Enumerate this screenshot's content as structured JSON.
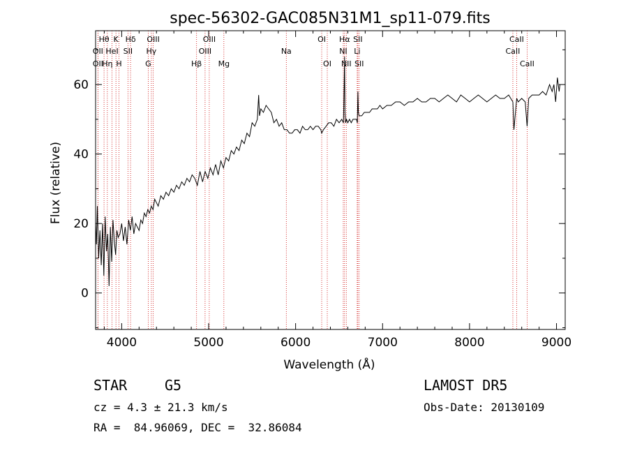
{
  "chart_data": {
    "type": "line",
    "title": "spec-56302-GAC085N31M1_sp11-079.fits",
    "xlabel": "Wavelength (Å)",
    "ylabel": "Flux (relative)",
    "xlim": [
      3700,
      9100
    ],
    "ylim": [
      -10.5,
      75.5
    ],
    "xticks": [
      4000,
      5000,
      6000,
      7000,
      8000,
      9000
    ],
    "yticks": [
      0,
      20,
      40,
      60
    ],
    "grid": false,
    "series": [
      {
        "x": [
          3700,
          3710,
          3720,
          3735,
          3750,
          3765,
          3780,
          3795,
          3810,
          3825,
          3840,
          3855,
          3870,
          3885,
          3900,
          3915,
          3930,
          3945,
          3960,
          3980,
          4000,
          4020,
          4040,
          4060,
          4080,
          4100,
          4120,
          4140,
          4160,
          4180,
          4200,
          4220,
          4240,
          4260,
          4280,
          4300,
          4320,
          4340,
          4360,
          4380,
          4400,
          4420,
          4450,
          4480,
          4510,
          4540,
          4570,
          4600,
          4630,
          4660,
          4690,
          4720,
          4750,
          4780,
          4810,
          4840,
          4870,
          4900,
          4930,
          4960,
          4990,
          5020,
          5050,
          5080,
          5110,
          5140,
          5170,
          5200,
          5230,
          5260,
          5290,
          5320,
          5350,
          5380,
          5410,
          5440,
          5470,
          5500,
          5530,
          5560,
          5575,
          5585,
          5600,
          5630,
          5660,
          5690,
          5720,
          5750,
          5780,
          5810,
          5840,
          5870,
          5900,
          5930,
          5960,
          5990,
          6020,
          6050,
          6080,
          6110,
          6140,
          6170,
          6200,
          6230,
          6260,
          6290,
          6300,
          6320,
          6350,
          6380,
          6410,
          6440,
          6470,
          6500,
          6530,
          6550,
          6558,
          6563,
          6568,
          6575,
          6585,
          6600,
          6620,
          6640,
          6660,
          6680,
          6700,
          6710,
          6716,
          6722,
          6730,
          6740,
          6760,
          6790,
          6820,
          6850,
          6880,
          6910,
          6940,
          6970,
          7000,
          7050,
          7100,
          7150,
          7200,
          7250,
          7300,
          7350,
          7400,
          7450,
          7500,
          7550,
          7600,
          7650,
          7700,
          7750,
          7800,
          7850,
          7900,
          7950,
          8000,
          8050,
          8100,
          8150,
          8200,
          8250,
          8300,
          8350,
          8400,
          8450,
          8498,
          8510,
          8542,
          8560,
          8600,
          8640,
          8662,
          8680,
          8720,
          8760,
          8800,
          8840,
          8880,
          8920,
          8950,
          8970,
          8990,
          9010,
          9030,
          9040
        ],
        "y": [
          20,
          14,
          25,
          10,
          18,
          8,
          20,
          5,
          22,
          12,
          17,
          2,
          19,
          9,
          21,
          15,
          11,
          18,
          16,
          17,
          20,
          15,
          19,
          14,
          21,
          18,
          22,
          17,
          20,
          19,
          18,
          21,
          20,
          23,
          22,
          24,
          23,
          25,
          24,
          27,
          26,
          25,
          28,
          27,
          29,
          28,
          30,
          29,
          31,
          30,
          32,
          31,
          33,
          32,
          34,
          33,
          31,
          35,
          32,
          35,
          33,
          36,
          34,
          37,
          34,
          38,
          36,
          39,
          38,
          41,
          40,
          42,
          41,
          44,
          43,
          46,
          45,
          49,
          48,
          50,
          57,
          51,
          53,
          52,
          54,
          53,
          52,
          49,
          50,
          48,
          49,
          47,
          47,
          46,
          46,
          47,
          47,
          46,
          48,
          47,
          47,
          48,
          47,
          48,
          48,
          47,
          46,
          47,
          48,
          49,
          49,
          48,
          50,
          49,
          50,
          49,
          60,
          68,
          52,
          49,
          50,
          49,
          50,
          49,
          50,
          50,
          50,
          49,
          58,
          52,
          51,
          51,
          51,
          52,
          52,
          52,
          53,
          53,
          53,
          54,
          53,
          54,
          54,
          55,
          55,
          54,
          55,
          55,
          56,
          55,
          55,
          56,
          56,
          55,
          56,
          57,
          56,
          55,
          57,
          56,
          55,
          56,
          57,
          56,
          55,
          56,
          57,
          56,
          56,
          57,
          55,
          47,
          56,
          55,
          56,
          55,
          48,
          56,
          57,
          57,
          57,
          58,
          57,
          60,
          58,
          60,
          55,
          62,
          58,
          60
        ]
      }
    ],
    "spectral_lines": [
      {
        "label": "Hθ",
        "x": 3797,
        "row": 0
      },
      {
        "label": "OII",
        "x": 3727,
        "row": 1
      },
      {
        "label": "OII",
        "x": 3727,
        "row": 2
      },
      {
        "label": "K",
        "x": 3934,
        "row": 0
      },
      {
        "label": "HeI",
        "x": 3889,
        "row": 1
      },
      {
        "label": "Hη",
        "x": 3835,
        "row": 2
      },
      {
        "label": "Hδ",
        "x": 4102,
        "row": 0
      },
      {
        "label": "SII",
        "x": 4072,
        "row": 1
      },
      {
        "label": "H",
        "x": 3969,
        "row": 2
      },
      {
        "label": "OIII",
        "x": 4363,
        "row": 0
      },
      {
        "label": "Hγ",
        "x": 4341,
        "row": 1
      },
      {
        "label": "G",
        "x": 4305,
        "row": 2
      },
      {
        "label": "OIII",
        "x": 5007,
        "row": 0
      },
      {
        "label": "OIII",
        "x": 4959,
        "row": 1
      },
      {
        "label": "Hβ",
        "x": 4861,
        "row": 2
      },
      {
        "label": "Mg",
        "x": 5175,
        "row": 2
      },
      {
        "label": "Na",
        "x": 5893,
        "row": 1
      },
      {
        "label": "OI",
        "x": 6300,
        "row": 0
      },
      {
        "label": "OI",
        "x": 6364,
        "row": 2
      },
      {
        "label": "Hα",
        "x": 6563,
        "row": 0
      },
      {
        "label": "SII",
        "x": 6716,
        "row": 0
      },
      {
        "label": "NI",
        "x": 6548,
        "row": 1
      },
      {
        "label": "Li",
        "x": 6708,
        "row": 1
      },
      {
        "label": "NII",
        "x": 6583,
        "row": 2
      },
      {
        "label": "SII",
        "x": 6731,
        "row": 2
      },
      {
        "label": "CaII",
        "x": 8542,
        "row": 0
      },
      {
        "label": "CaII",
        "x": 8498,
        "row": 1
      },
      {
        "label": "CaII",
        "x": 8662,
        "row": 2
      }
    ],
    "line_color": "#cc0000"
  },
  "info": {
    "class": "STAR",
    "subclass": "G5",
    "survey": "LAMOST DR5",
    "cz": "cz = 4.3 ± 21.3 km/s",
    "obs_date": "Obs-Date: 20130109",
    "radec": "RA =  84.96069, DEC =  32.86084"
  }
}
